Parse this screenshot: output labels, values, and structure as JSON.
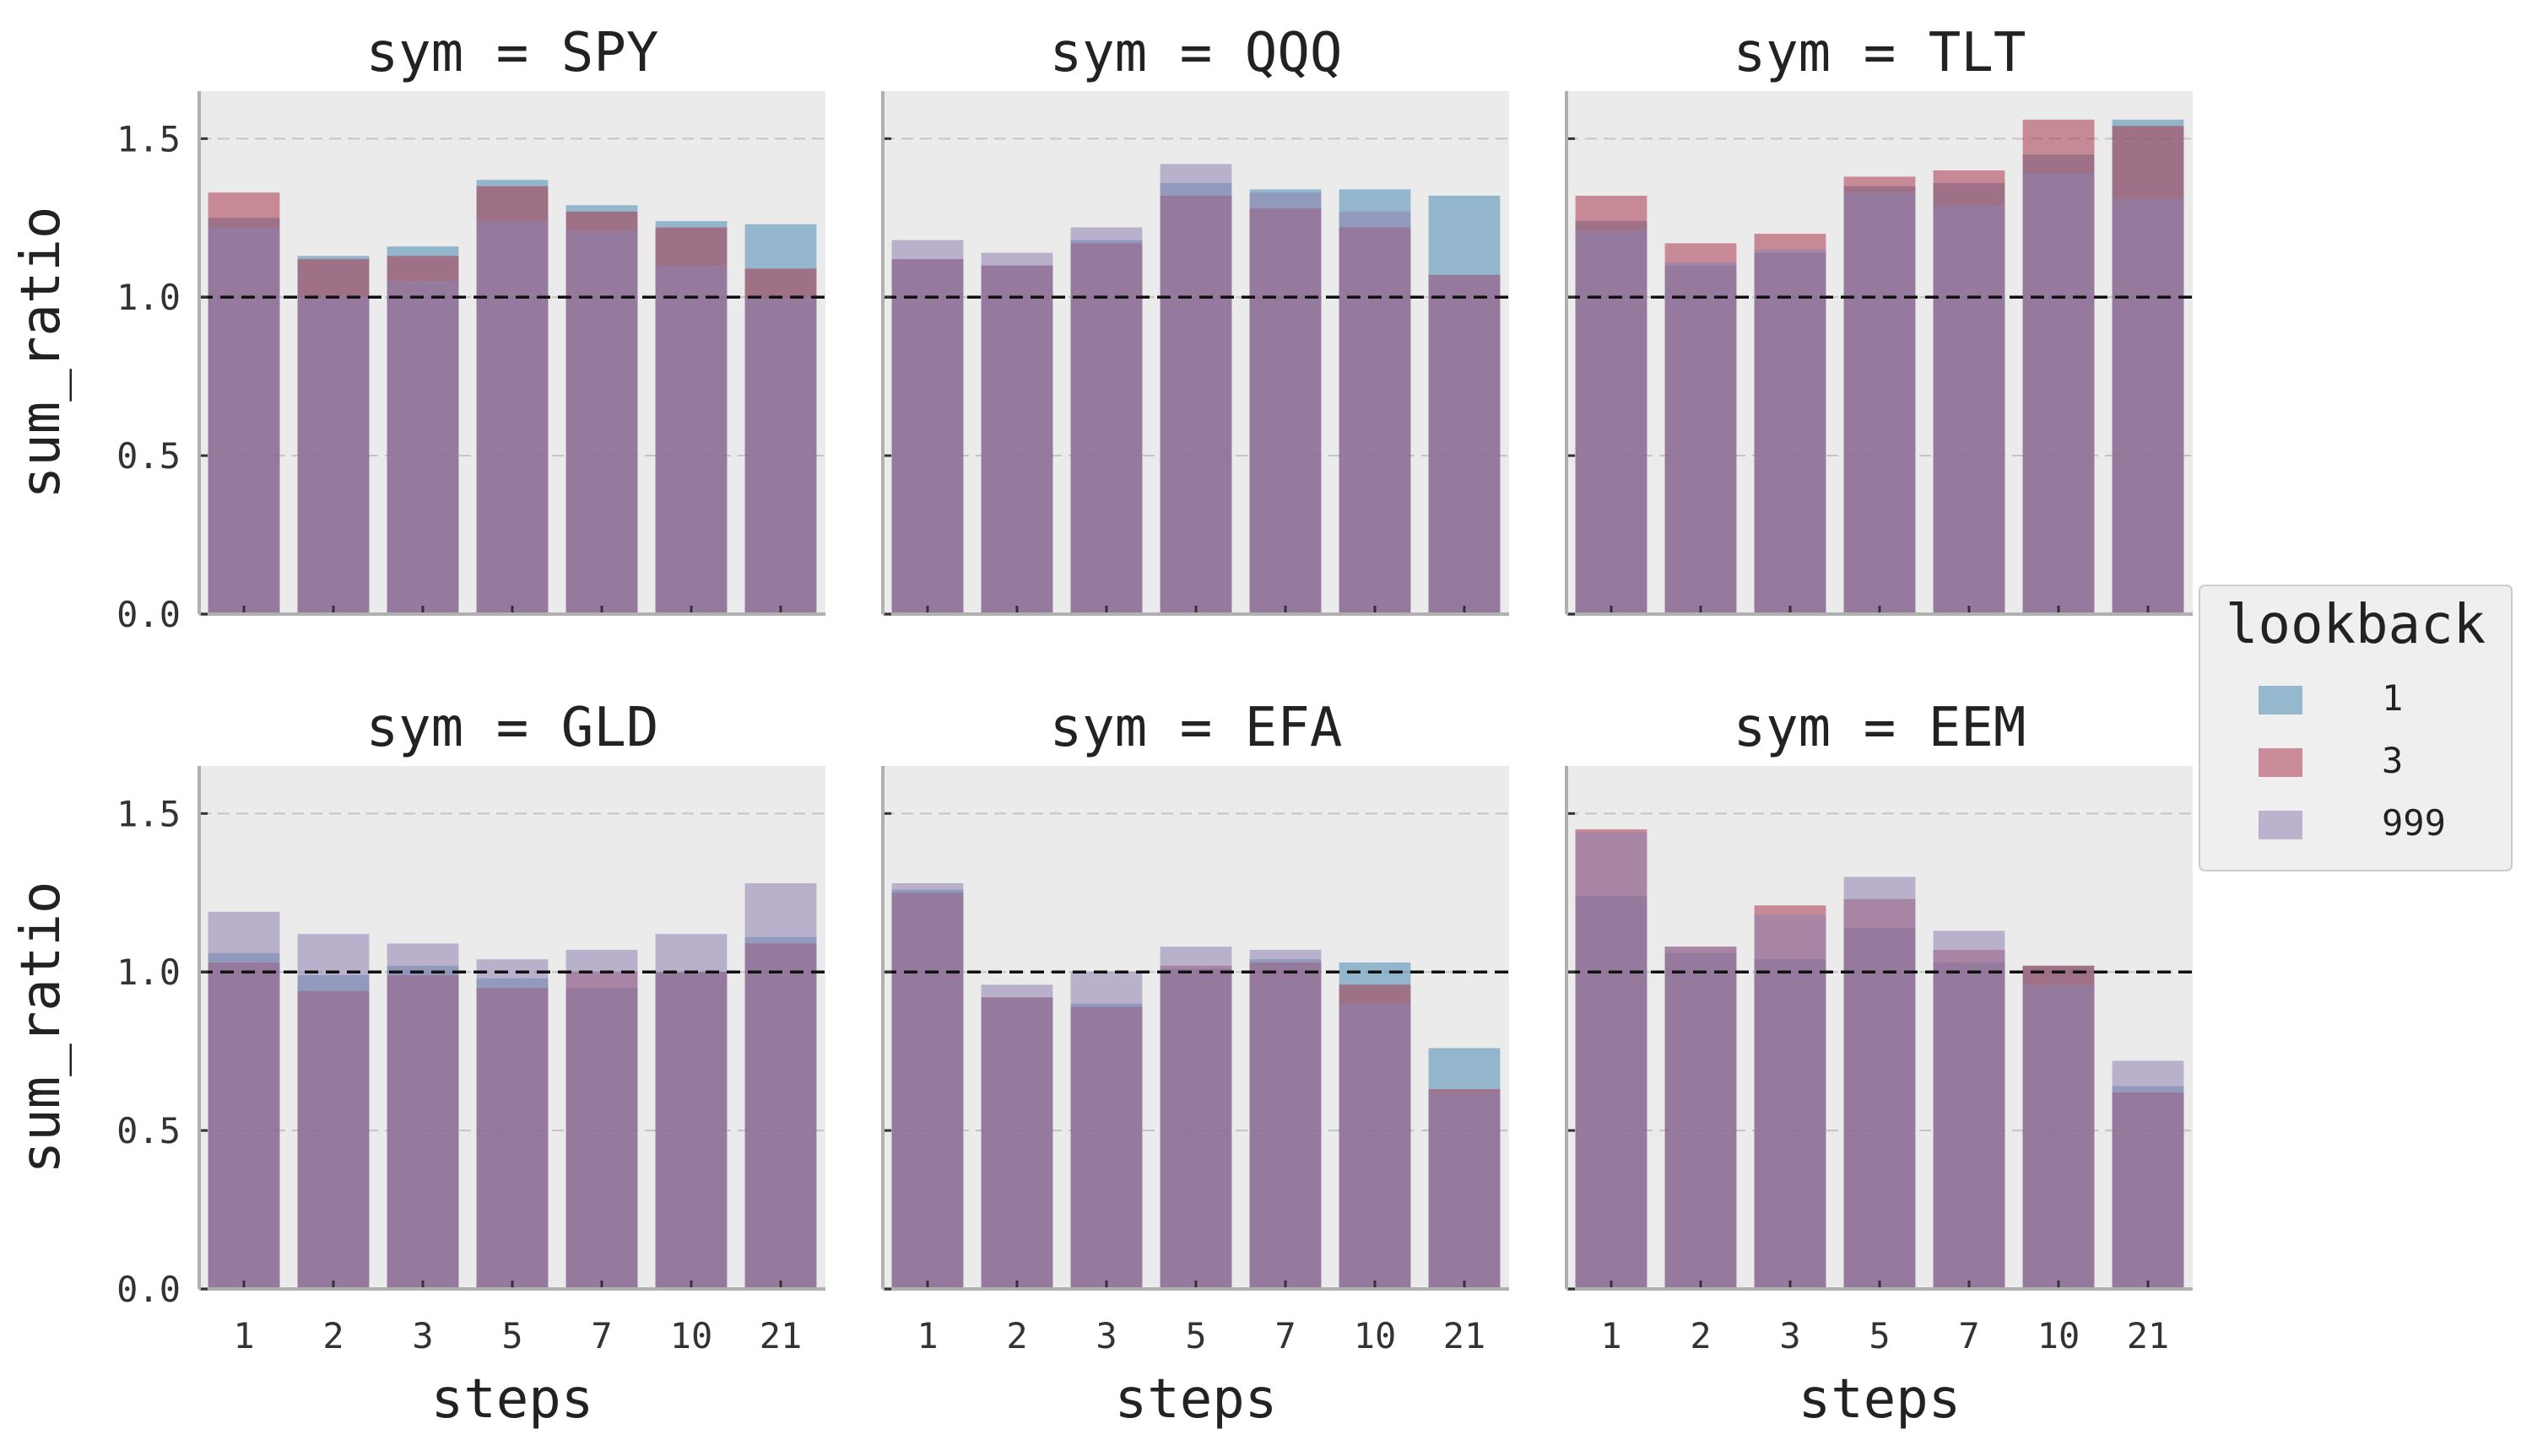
{
  "chart_data": {
    "type": "bar",
    "categories": [
      "1",
      "2",
      "3",
      "5",
      "7",
      "10",
      "21"
    ],
    "xlabel": "steps",
    "ylabel": "sum_ratio",
    "ylim": [
      0,
      1.65
    ],
    "yticks": [
      0.0,
      0.5,
      1.0,
      1.5
    ],
    "ytick_labels": [
      "0.0",
      "0.5",
      "1.0",
      "1.5"
    ],
    "reference_line": 1.0,
    "grid": true,
    "legend": {
      "title": "lookback",
      "placement": "right",
      "entries": [
        "1",
        "3",
        "999"
      ]
    },
    "series_colors": {
      "1": "#4b8bb5",
      "3": "#a8384f",
      "999": "#8f82b0"
    },
    "panels": [
      {
        "title": "sym = SPY",
        "series": [
          {
            "name": "1",
            "values": [
              1.25,
              1.13,
              1.16,
              1.37,
              1.29,
              1.24,
              1.23
            ]
          },
          {
            "name": "3",
            "values": [
              1.33,
              1.12,
              1.13,
              1.35,
              1.27,
              1.22,
              1.09
            ]
          },
          {
            "name": "999",
            "values": [
              1.22,
              1.0,
              1.05,
              1.24,
              1.21,
              1.1,
              1.0
            ]
          }
        ]
      },
      {
        "title": "sym = QQQ",
        "series": [
          {
            "name": "1",
            "values": [
              1.12,
              1.1,
              1.18,
              1.36,
              1.34,
              1.34,
              1.32
            ]
          },
          {
            "name": "3",
            "values": [
              1.12,
              1.1,
              1.17,
              1.32,
              1.28,
              1.22,
              1.07
            ]
          },
          {
            "name": "999",
            "values": [
              1.18,
              1.14,
              1.22,
              1.42,
              1.33,
              1.27,
              1.07
            ]
          }
        ]
      },
      {
        "title": "sym = TLT",
        "series": [
          {
            "name": "1",
            "values": [
              1.24,
              1.1,
              1.14,
              1.35,
              1.36,
              1.45,
              1.56
            ]
          },
          {
            "name": "3",
            "values": [
              1.32,
              1.17,
              1.2,
              1.38,
              1.4,
              1.56,
              1.54
            ]
          },
          {
            "name": "999",
            "values": [
              1.21,
              1.11,
              1.15,
              1.33,
              1.29,
              1.39,
              1.31
            ]
          }
        ]
      },
      {
        "title": "sym = GLD",
        "series": [
          {
            "name": "1",
            "values": [
              1.06,
              0.99,
              1.02,
              0.98,
              0.95,
              1.0,
              1.11
            ]
          },
          {
            "name": "3",
            "values": [
              1.03,
              0.94,
              0.99,
              0.95,
              1.0,
              1.0,
              1.09
            ]
          },
          {
            "name": "999",
            "values": [
              1.19,
              1.12,
              1.09,
              1.04,
              1.07,
              1.12,
              1.28
            ]
          }
        ]
      },
      {
        "title": "sym = EFA",
        "series": [
          {
            "name": "1",
            "values": [
              1.26,
              0.92,
              0.9,
              1.01,
              1.04,
              1.03,
              0.76
            ]
          },
          {
            "name": "3",
            "values": [
              1.25,
              0.92,
              0.89,
              1.02,
              1.03,
              0.96,
              0.63
            ]
          },
          {
            "name": "999",
            "values": [
              1.28,
              0.96,
              1.0,
              1.08,
              1.07,
              0.9,
              0.62
            ]
          }
        ]
      },
      {
        "title": "sym = EEM",
        "series": [
          {
            "name": "1",
            "values": [
              1.24,
              1.06,
              1.04,
              1.14,
              1.03,
              1.02,
              0.64
            ]
          },
          {
            "name": "3",
            "values": [
              1.45,
              1.08,
              1.21,
              1.23,
              1.07,
              1.02,
              0.62
            ]
          },
          {
            "name": "999",
            "values": [
              1.44,
              1.08,
              1.18,
              1.3,
              1.13,
              0.96,
              0.72
            ]
          }
        ]
      }
    ]
  }
}
